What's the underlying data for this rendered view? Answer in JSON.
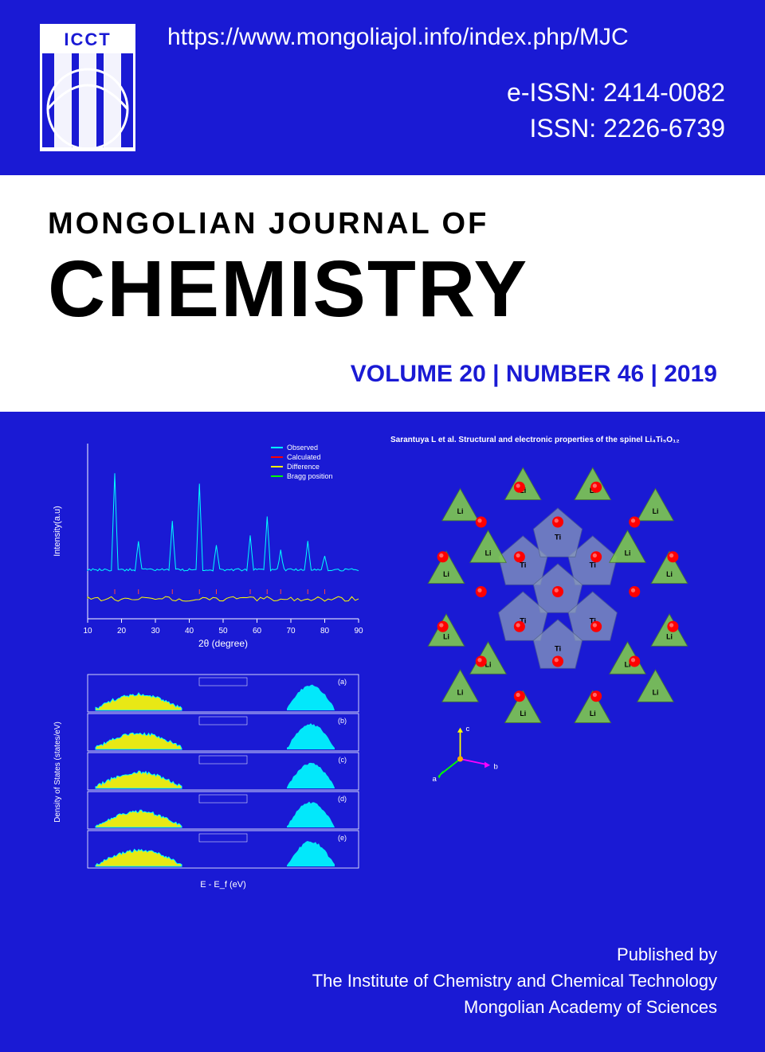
{
  "header": {
    "logo_text": "ICCT",
    "url": "https://www.mongoliajol.info/index.php/MJC",
    "eissn": "e-ISSN: 2414-0082",
    "issn": "ISSN: 2226-6739"
  },
  "title": {
    "line1": "MONGOLIAN JOURNAL OF",
    "line2": "CHEMISTRY",
    "volume": "VOLUME 20 |  NUMBER 46 | 2019"
  },
  "xrd_chart": {
    "type": "line",
    "xlabel": "2θ (degree)",
    "ylabel": "Intensity(a.u)",
    "xlim": [
      10,
      90
    ],
    "xticks": [
      10,
      20,
      30,
      40,
      50,
      60,
      70,
      80,
      90
    ],
    "legend": [
      "Observed",
      "Calculated",
      "Difference",
      "Bragg position"
    ],
    "legend_colors": [
      "#00ffff",
      "#ff0000",
      "#ffff00",
      "#00ff00"
    ],
    "peaks_x": [
      18,
      25,
      35,
      43,
      48,
      58,
      63,
      67,
      75,
      80
    ],
    "peaks_height": [
      200,
      60,
      100,
      180,
      50,
      70,
      110,
      40,
      60,
      30
    ],
    "baseline_y": 50,
    "observed_color": "#00ffff",
    "difference_color": "#ffff00",
    "axis_color": "#ffffff",
    "text_color": "#ffffff",
    "font_size": 10
  },
  "dos_chart": {
    "type": "stacked_line",
    "xlabel": "E - E_f (eV)",
    "ylabel": "Density of States (states/eV)",
    "panels": 5,
    "panel_labels": [
      "(a)",
      "(b)",
      "(c)",
      "(d)",
      "(e)"
    ],
    "xrange": [
      -6,
      6
    ],
    "fill_color": "#ffff00",
    "line_color": "#00ffff",
    "axis_color": "#ffffff",
    "text_color": "#ffffff",
    "font_size": 9
  },
  "crystal_structure": {
    "title": "Sarantuya L et al. Structural and electronic properties of the spinel Li₄Ti₅O₁₂",
    "li_color": "#7ec850",
    "ti_color": "#8899bb",
    "o_color": "#ff0000",
    "li_label": "Li",
    "ti_label": "Ti",
    "axis_labels": [
      "a",
      "b",
      "c"
    ],
    "axis_colors": [
      "#00ff00",
      "#ff00ff",
      "#ffff00"
    ]
  },
  "footer": {
    "line1": "Published by",
    "line2": "The Institute of Chemistry and Chemical Technology",
    "line3": "Mongolian Academy of Sciences"
  },
  "colors": {
    "background": "#1a1ad4",
    "white": "#ffffff",
    "title_accent": "#1a1ad4"
  }
}
